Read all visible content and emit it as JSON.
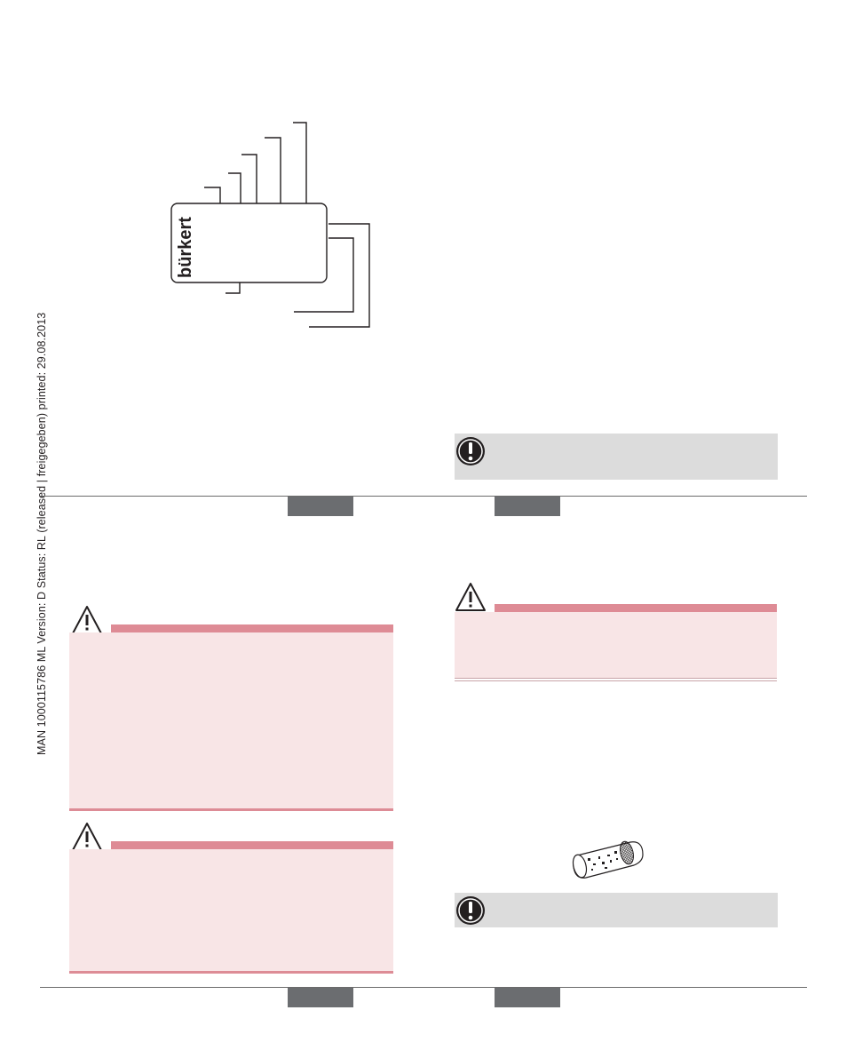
{
  "side_print": "MAN  1000115786  ML  Version: D  Status: RL (released | freigegeben)  printed: 29.08.2013",
  "type_label": {
    "logo_text": "bürkert"
  },
  "icons": {
    "warning": "warning-triangle-icon",
    "note": "exclamation-circle-icon",
    "filter": "dirt-filter-icon"
  },
  "colors": {
    "warning_bar": "#de8b95",
    "warning_fill": "#f8e5e6",
    "note_fill": "#dcdcdc",
    "tab": "#6b6d70"
  }
}
